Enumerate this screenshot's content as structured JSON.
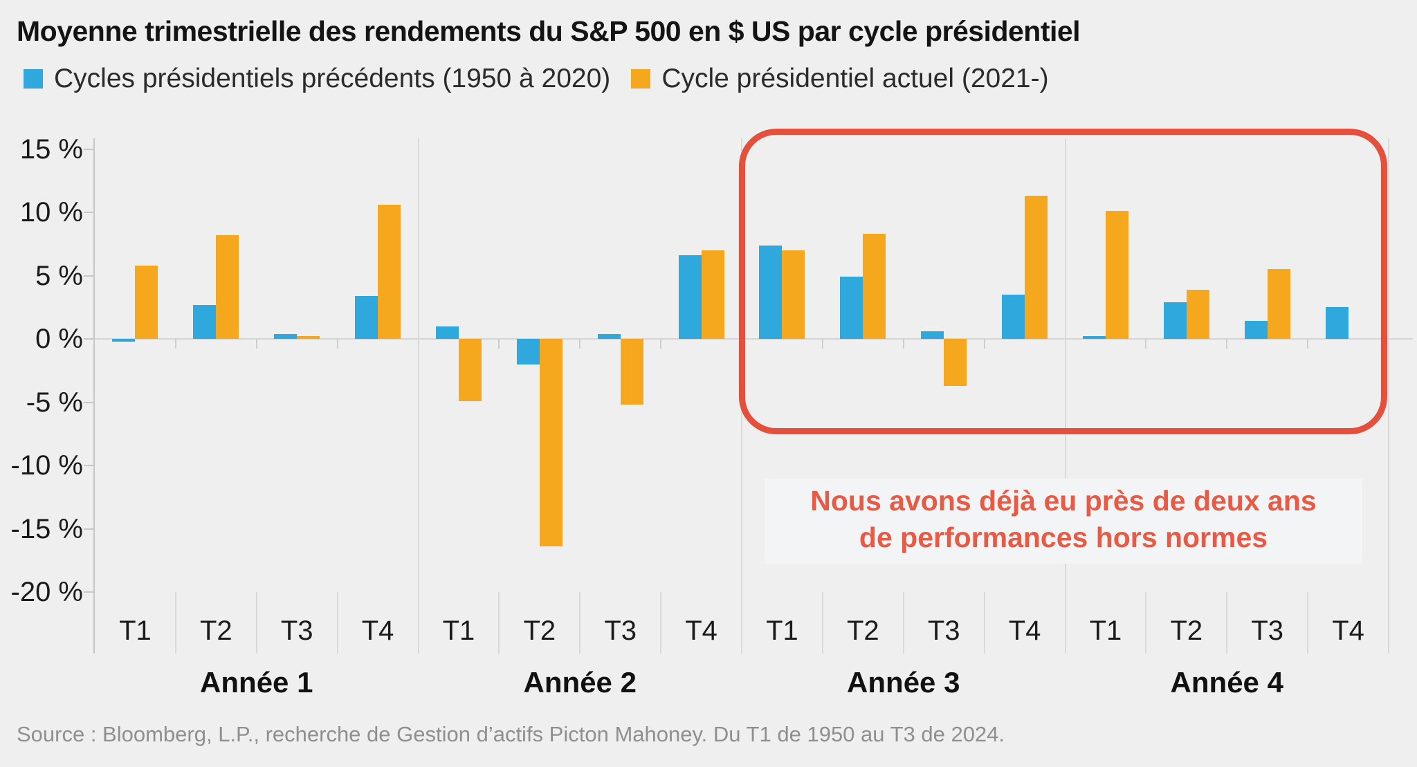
{
  "title": "Moyenne trimestrielle des rendements du S&P 500 en $ US par cycle présidentiel",
  "legend": [
    {
      "label": "Cycles présidentiels précédents (1950 à 2020)",
      "color": "#2fa9dd"
    },
    {
      "label": "Cycle présidentiel actuel (2021-)",
      "color": "#f5a81e"
    }
  ],
  "annotation": {
    "line1": "Nous avons déjà eu près de deux ans",
    "line2": "de performances hors normes",
    "color": "#e85a43"
  },
  "source": "Source : Bloomberg, L.P., recherche de Gestion d’actifs Picton Mahoney. Du T1 de 1950 au T3 de 2024.",
  "colors": {
    "previous_cycles": "#2fa9dd",
    "current_cycle": "#f5a81e",
    "highlight_box": "#e4503c",
    "background": "#efefef"
  },
  "chart_data": {
    "type": "bar",
    "title": "Moyenne trimestrielle des rendements du S&P 500 en $ US par cycle présidentiel",
    "ylabel": "",
    "xlabel": "",
    "unit": "%",
    "ylim": [
      -22.5,
      16.5
    ],
    "grid": false,
    "legend_position": "top",
    "y_tick_values": [
      15,
      10,
      5,
      0,
      -5,
      -10,
      -15,
      -20
    ],
    "y_tick_labels": [
      "15 %",
      "10 %",
      "5 %",
      "0 %",
      "-5 %",
      "-10 %",
      "-15 %",
      "-20 %"
    ],
    "categories_years": [
      "Année 1",
      "Année 2",
      "Année 3",
      "Année 4"
    ],
    "categories_quarters": [
      "T1",
      "T2",
      "T3",
      "T4"
    ],
    "series": [
      {
        "name": "Cycles présidentiels précédents (1950 à 2020)",
        "color": "#2fa9dd",
        "values": [
          [
            -0.2,
            2.7,
            0.4,
            3.4
          ],
          [
            1.0,
            -2.0,
            0.4,
            6.6
          ],
          [
            7.4,
            4.9,
            0.6,
            3.5
          ],
          [
            0.2,
            2.9,
            1.4,
            2.5
          ]
        ]
      },
      {
        "name": "Cycle présidentiel actuel (2021-)",
        "color": "#f5a81e",
        "values": [
          [
            5.8,
            8.2,
            0.2,
            10.6
          ],
          [
            -4.9,
            -16.4,
            -5.2,
            7.0
          ],
          [
            7.0,
            8.3,
            -3.7,
            11.3
          ],
          [
            10.1,
            3.9,
            5.5,
            null
          ]
        ]
      }
    ],
    "annotations": [
      {
        "type": "box",
        "label": "Nous avons déjà eu près de deux ans de performances hors normes",
        "covers_years": [
          "Année 3",
          "Année 4"
        ],
        "color": "#e4503c"
      }
    ]
  }
}
